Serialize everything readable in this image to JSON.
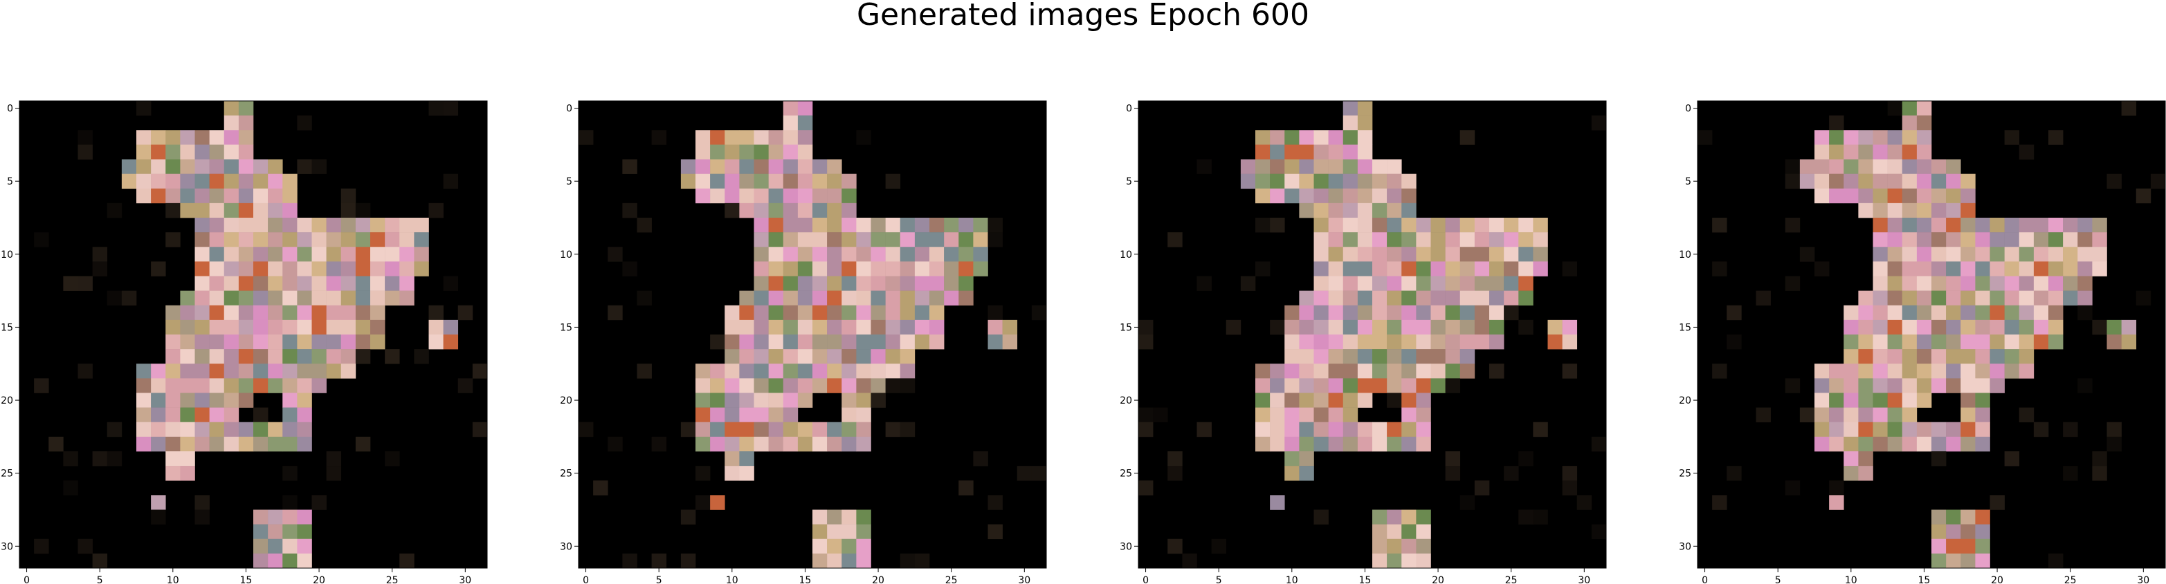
{
  "title": "Generated images Epoch 600",
  "panels": [
    {
      "id": "sample-1"
    },
    {
      "id": "sample-2"
    },
    {
      "id": "sample-3"
    },
    {
      "id": "sample-4"
    }
  ],
  "axes": {
    "grid_size": 32,
    "x_ticks": [
      0,
      5,
      10,
      15,
      20,
      25,
      30
    ],
    "y_ticks": [
      0,
      5,
      10,
      15,
      20,
      25,
      30
    ],
    "x_tick_labels": [
      "0",
      "5",
      "10",
      "15",
      "20",
      "25",
      "30"
    ],
    "y_tick_labels": [
      "0",
      "5",
      "10",
      "15",
      "20",
      "25",
      "30"
    ]
  },
  "colors": {
    "background": "#000000",
    "skin_light": "#e8c4b8",
    "pink": "#d98fc0",
    "green": "#6b8a50",
    "orange": "#c8643c",
    "mauve": "#b48ca0"
  }
}
